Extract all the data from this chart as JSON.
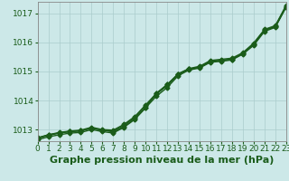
{
  "title": "",
  "xlabel": "Graphe pression niveau de la mer (hPa)",
  "ylabel": "",
  "background_color": "#cce8e8",
  "grid_color": "#aacccc",
  "line_color": "#1a5c1a",
  "xlim": [
    0,
    23
  ],
  "ylim": [
    1012.6,
    1017.4
  ],
  "yticks": [
    1013,
    1014,
    1015,
    1016,
    1017
  ],
  "xticks": [
    0,
    1,
    2,
    3,
    4,
    5,
    6,
    7,
    8,
    9,
    10,
    11,
    12,
    13,
    14,
    15,
    16,
    17,
    18,
    19,
    20,
    21,
    22,
    23
  ],
  "series": [
    [
      1012.7,
      1012.82,
      1012.88,
      1012.93,
      1012.95,
      1013.05,
      1012.98,
      1012.92,
      1013.1,
      1013.38,
      1013.75,
      1014.15,
      1014.45,
      1014.85,
      1015.05,
      1015.12,
      1015.32,
      1015.35,
      1015.4,
      1015.6,
      1015.9,
      1016.38,
      1016.52,
      1017.22
    ],
    [
      1012.7,
      1012.8,
      1012.88,
      1012.93,
      1012.96,
      1013.05,
      1012.98,
      1012.95,
      1013.15,
      1013.42,
      1013.82,
      1014.22,
      1014.52,
      1014.9,
      1015.08,
      1015.15,
      1015.35,
      1015.38,
      1015.43,
      1015.62,
      1015.95,
      1016.42,
      1016.55,
      1017.25
    ],
    [
      1012.72,
      1012.82,
      1012.9,
      1012.95,
      1012.98,
      1013.08,
      1013.0,
      1012.98,
      1013.18,
      1013.45,
      1013.85,
      1014.25,
      1014.55,
      1014.92,
      1015.1,
      1015.18,
      1015.38,
      1015.42,
      1015.46,
      1015.65,
      1015.98,
      1016.45,
      1016.58,
      1017.28
    ],
    [
      1012.65,
      1012.75,
      1012.82,
      1012.88,
      1012.9,
      1013.0,
      1012.93,
      1012.88,
      1013.08,
      1013.35,
      1013.75,
      1014.25,
      1014.55,
      1014.9,
      1015.08,
      1015.15,
      1015.35,
      1015.38,
      1015.42,
      1015.62,
      1015.95,
      1016.42,
      1016.55,
      1017.22
    ]
  ],
  "marker": "D",
  "markersize": 2.5,
  "linewidth": 1.0,
  "xlabel_fontsize": 8,
  "tick_fontsize": 6.5
}
